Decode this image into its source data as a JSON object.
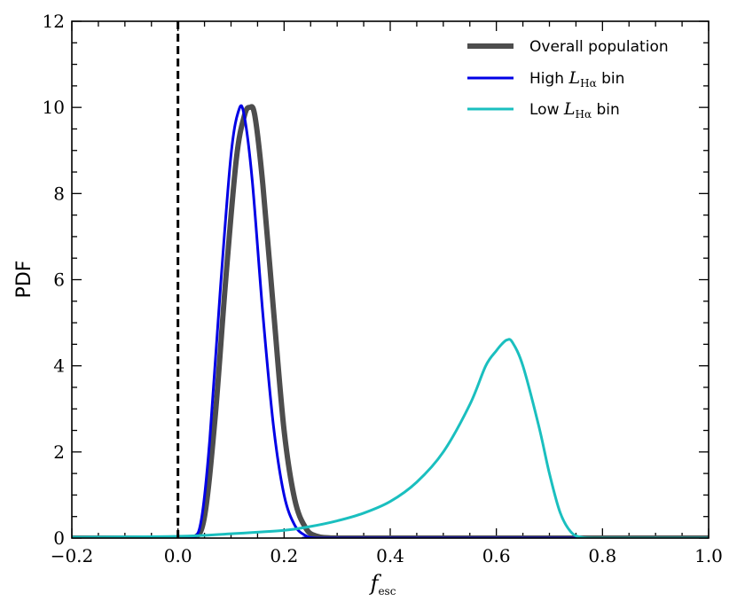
{
  "chart_data": {
    "type": "line",
    "xlabel": "f",
    "xlabel_sub": "esc",
    "ylabel": "PDF",
    "xlim": [
      -0.2,
      1.0
    ],
    "ylim": [
      0,
      12
    ],
    "xticks": [
      "−0.2",
      "0.0",
      "0.2",
      "0.4",
      "0.6",
      "0.8",
      "1.0"
    ],
    "xtick_values": [
      -0.2,
      0.0,
      0.2,
      0.4,
      0.6,
      0.8,
      1.0
    ],
    "yticks": [
      "0",
      "2",
      "4",
      "6",
      "8",
      "10",
      "12"
    ],
    "ytick_values": [
      0,
      2,
      4,
      6,
      8,
      10,
      12
    ],
    "grid": false,
    "legend_position": "top-right",
    "vline": {
      "x": 0.0,
      "style": "dashed",
      "color": "#000000"
    },
    "series": [
      {
        "name": "Overall population",
        "color": "#4d4d4d",
        "x": [
          -0.2,
          0.0,
          0.03,
          0.05,
          0.07,
          0.09,
          0.11,
          0.125,
          0.135,
          0.145,
          0.16,
          0.18,
          0.2,
          0.22,
          0.24,
          0.26,
          0.3,
          0.4,
          1.0
        ],
        "y": [
          0,
          0,
          0,
          0.5,
          2.8,
          6.0,
          8.8,
          9.8,
          10.0,
          9.8,
          8.2,
          5.3,
          2.5,
          0.9,
          0.25,
          0.05,
          0,
          0,
          0
        ]
      },
      {
        "name": "High L_Hα bin",
        "legend_prefix": "High ",
        "legend_math": "L",
        "legend_sub": "Hα",
        "legend_suffix": " bin",
        "color": "#0000e6",
        "x": [
          -0.2,
          0.0,
          0.03,
          0.045,
          0.06,
          0.08,
          0.1,
          0.115,
          0.125,
          0.14,
          0.16,
          0.18,
          0.2,
          0.22,
          0.24,
          0.26,
          0.3,
          1.0
        ],
        "y": [
          0,
          0,
          0,
          0.5,
          2.3,
          5.8,
          8.9,
          9.95,
          9.8,
          8.3,
          5.2,
          2.6,
          1.0,
          0.3,
          0.06,
          0,
          0,
          0
        ]
      },
      {
        "name": "Low L_Hα bin",
        "legend_prefix": "Low ",
        "legend_math": "L",
        "legend_sub": "Hα",
        "legend_suffix": " bin",
        "color": "#1abfbf",
        "x": [
          -0.2,
          0.0,
          0.1,
          0.2,
          0.25,
          0.3,
          0.35,
          0.4,
          0.45,
          0.5,
          0.55,
          0.58,
          0.6,
          0.61,
          0.62,
          0.63,
          0.65,
          0.68,
          0.7,
          0.72,
          0.74,
          0.76,
          0.8,
          1.0
        ],
        "y": [
          0.02,
          0.04,
          0.1,
          0.18,
          0.27,
          0.4,
          0.58,
          0.85,
          1.3,
          2.0,
          3.1,
          4.0,
          4.35,
          4.5,
          4.6,
          4.55,
          4.0,
          2.6,
          1.5,
          0.6,
          0.15,
          0.02,
          0,
          0
        ]
      }
    ]
  }
}
